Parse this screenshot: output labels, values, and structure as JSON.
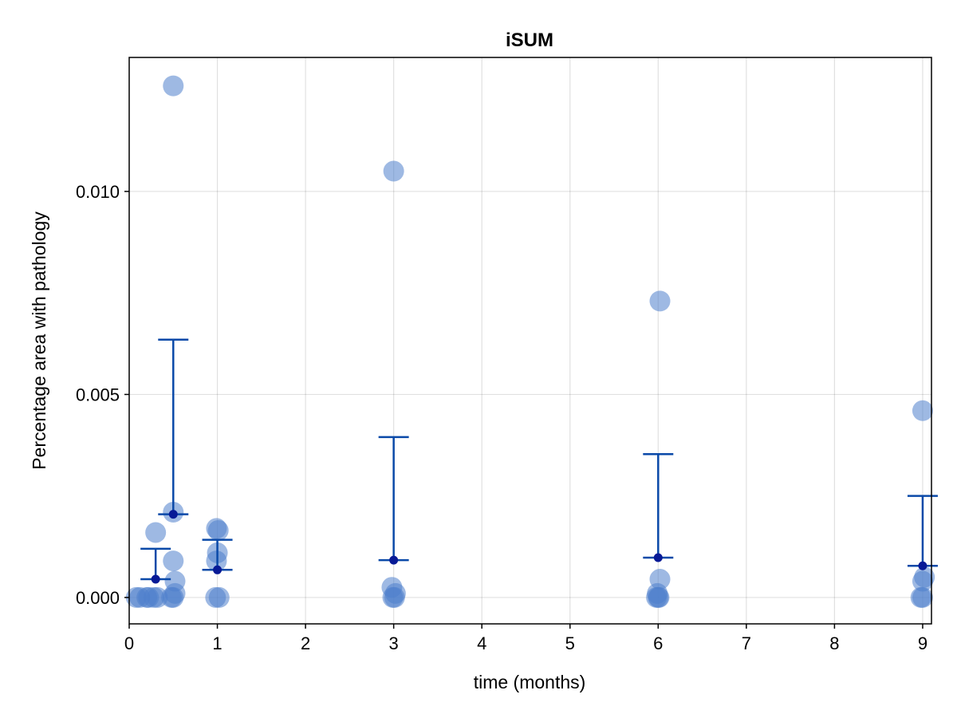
{
  "chart_data": {
    "type": "scatter",
    "title": "iSUM",
    "xlabel": "time (months)",
    "ylabel": "Percentage area with pathology",
    "xlim": [
      0,
      9.1
    ],
    "ylim": [
      -0.00065,
      0.0133
    ],
    "xticks": [
      0,
      1,
      2,
      3,
      4,
      5,
      6,
      7,
      8,
      9
    ],
    "xtick_labels": [
      "0",
      "1",
      "2",
      "3",
      "4",
      "5",
      "6",
      "7",
      "8",
      "9"
    ],
    "yticks": [
      0.0,
      0.005,
      0.01
    ],
    "ytick_labels": [
      "0.000",
      "0.005",
      "0.010"
    ],
    "grid": true,
    "colors": {
      "points": "#4f7fcc",
      "errorbar": "#0a49a8",
      "mean": "#081a96"
    },
    "series": [
      {
        "kind": "individual",
        "points": [
          {
            "x": 0.08,
            "y": 0.0
          },
          {
            "x": 0.12,
            "y": 0.0
          },
          {
            "x": 0.2,
            "y": 0.0
          },
          {
            "x": 0.22,
            "y": 0.0
          },
          {
            "x": 0.28,
            "y": 0.0
          },
          {
            "x": 0.32,
            "y": 0.0
          },
          {
            "x": 0.3,
            "y": 0.0016
          },
          {
            "x": 0.5,
            "y": 0.0126
          },
          {
            "x": 0.5,
            "y": 0.0021
          },
          {
            "x": 0.5,
            "y": 0.0009
          },
          {
            "x": 0.52,
            "y": 0.0004
          },
          {
            "x": 0.5,
            "y": 0.0
          },
          {
            "x": 0.52,
            "y": 0.0001
          },
          {
            "x": 0.48,
            "y": 0.0
          },
          {
            "x": 0.99,
            "y": 0.0017
          },
          {
            "x": 1.01,
            "y": 0.00165
          },
          {
            "x": 1.0,
            "y": 0.0011
          },
          {
            "x": 0.99,
            "y": 0.0009
          },
          {
            "x": 0.98,
            "y": 0.0
          },
          {
            "x": 1.02,
            "y": 0.0
          },
          {
            "x": 3.0,
            "y": 0.0105
          },
          {
            "x": 2.98,
            "y": 0.00025
          },
          {
            "x": 3.02,
            "y": 0.0001
          },
          {
            "x": 2.99,
            "y": 0.0
          },
          {
            "x": 3.01,
            "y": 0.0
          },
          {
            "x": 6.02,
            "y": 0.0073
          },
          {
            "x": 6.02,
            "y": 0.00045
          },
          {
            "x": 5.99,
            "y": 0.0001
          },
          {
            "x": 5.98,
            "y": 0.0
          },
          {
            "x": 6.0,
            "y": 0.0
          },
          {
            "x": 6.01,
            "y": 0.0
          },
          {
            "x": 9.0,
            "y": 0.0046
          },
          {
            "x": 9.0,
            "y": 0.0004
          },
          {
            "x": 9.02,
            "y": 0.0005
          },
          {
            "x": 8.98,
            "y": 0.0
          },
          {
            "x": 9.0,
            "y": 0.0
          }
        ]
      },
      {
        "kind": "mean_with_error",
        "points": [
          {
            "x": 0.3,
            "y": 0.00045,
            "lower": 0.00045,
            "upper": 0.0012
          },
          {
            "x": 0.5,
            "y": 0.00205,
            "lower": 0.00205,
            "upper": 0.00635
          },
          {
            "x": 1.0,
            "y": 0.00068,
            "lower": 0.00068,
            "upper": 0.00142
          },
          {
            "x": 3.0,
            "y": 0.00092,
            "lower": 0.00092,
            "upper": 0.00395
          },
          {
            "x": 6.0,
            "y": 0.00098,
            "lower": 0.00098,
            "upper": 0.00353
          },
          {
            "x": 9.0,
            "y": 0.00078,
            "lower": 0.00078,
            "upper": 0.0025
          }
        ]
      }
    ]
  }
}
